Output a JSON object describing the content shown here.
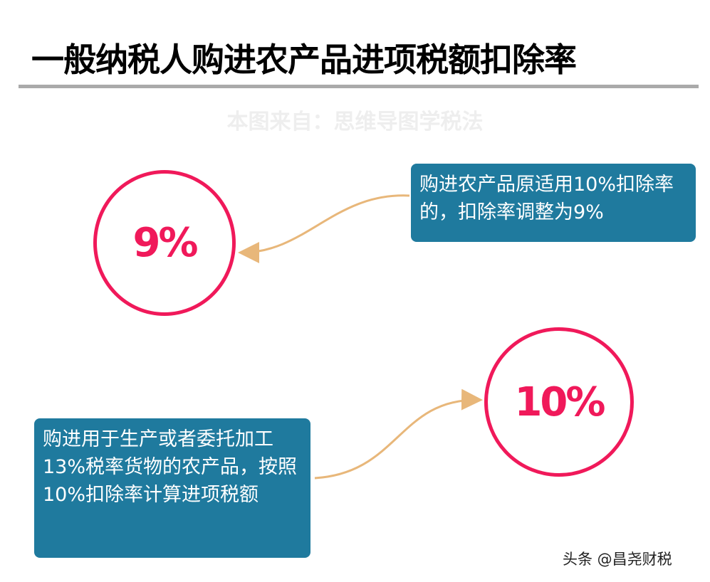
{
  "title": "一般纳税人购进农产品进项税额扣除率",
  "watermark": "本图来自：思维导图学税法",
  "nodes": [
    {
      "rate": "9%",
      "note": "购进农产品原适用10%扣除率的，扣除率调整为9%"
    },
    {
      "rate": "10%",
      "note": "购进用于生产或者委托加工13%税率货物的农产品，按照10%扣除率计算进项税额"
    }
  ],
  "credit": "头条 @昌尧财税",
  "colors": {
    "circle": "#f0195a",
    "box": "#1f7a9e",
    "arrow": "#e8b77a"
  }
}
